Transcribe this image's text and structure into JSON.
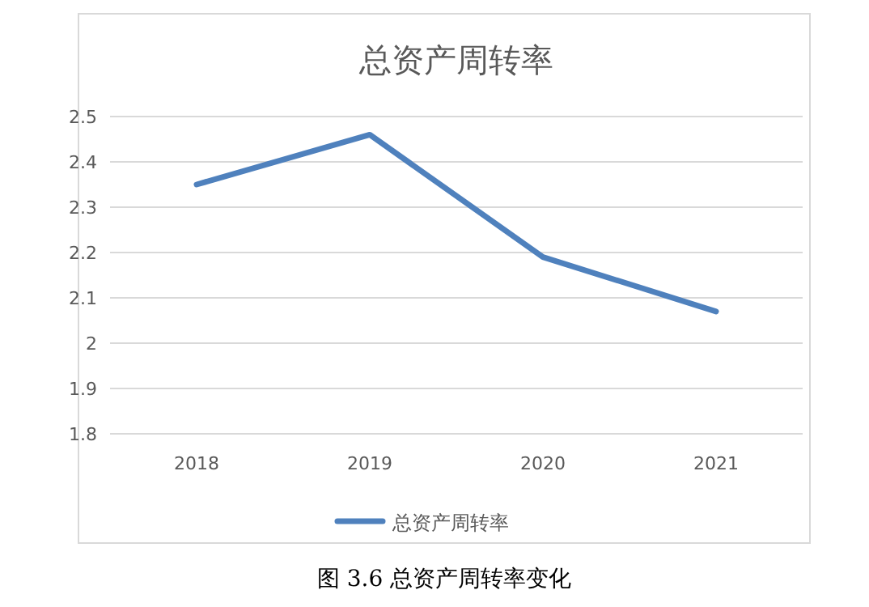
{
  "chart_data": {
    "type": "line",
    "title": "总资产周转率",
    "categories": [
      "2018",
      "2019",
      "2020",
      "2021"
    ],
    "series": [
      {
        "name": "总资产周转率",
        "color": "#4f81bd",
        "values": [
          2.35,
          2.46,
          2.19,
          2.07
        ]
      }
    ],
    "ylim": [
      1.8,
      2.5
    ],
    "yticks": [
      1.8,
      1.9,
      2,
      2.1,
      2.2,
      2.3,
      2.4,
      2.5
    ],
    "grid": "y",
    "legend": "bottom",
    "marker": "none",
    "line_style": "solid",
    "annotations": [
      "图 3.6 总资产周转率变化"
    ]
  }
}
